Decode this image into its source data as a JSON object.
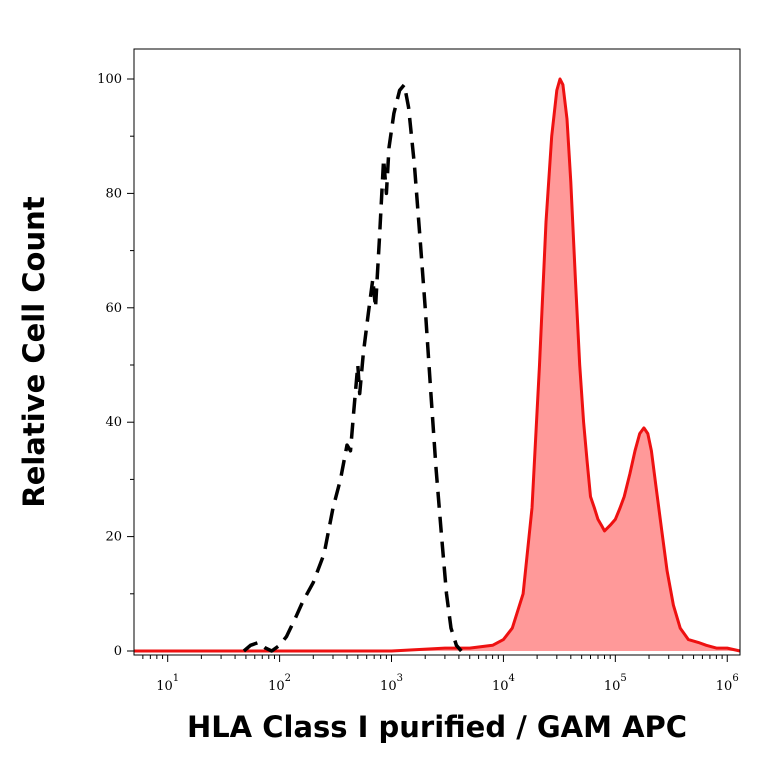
{
  "chart_data": {
    "type": "area",
    "title": "",
    "xlabel": "HLA Class I purified / GAM APC",
    "ylabel": "Relative Cell Count",
    "x_scale": "log",
    "xlim": [
      5,
      1300000
    ],
    "ylim": [
      0,
      100
    ],
    "grid": false,
    "x_ticks": [
      {
        "base": "10",
        "exp": "1",
        "value": 10
      },
      {
        "base": "10",
        "exp": "2",
        "value": 100
      },
      {
        "base": "10",
        "exp": "3",
        "value": 1000
      },
      {
        "base": "10",
        "exp": "4",
        "value": 10000
      },
      {
        "base": "10",
        "exp": "5",
        "value": 100000
      },
      {
        "base": "10",
        "exp": "6",
        "value": 1000000
      }
    ],
    "y_ticks": [
      {
        "label": "0",
        "value": 0
      },
      {
        "label": "20",
        "value": 20
      },
      {
        "label": "40",
        "value": 40
      },
      {
        "label": "60",
        "value": 60
      },
      {
        "label": "80",
        "value": 80
      },
      {
        "label": "100",
        "value": 100
      }
    ],
    "series": [
      {
        "style": "dashed",
        "color": "#000000",
        "fill": "none",
        "points": [
          [
            48,
            0
          ],
          [
            55,
            1
          ],
          [
            65,
            1.5
          ],
          [
            75,
            0.5
          ],
          [
            85,
            0
          ],
          [
            100,
            1
          ],
          [
            115,
            2.5
          ],
          [
            140,
            6
          ],
          [
            160,
            8.5
          ],
          [
            200,
            12
          ],
          [
            250,
            17
          ],
          [
            300,
            25
          ],
          [
            350,
            30
          ],
          [
            400,
            36
          ],
          [
            430,
            35
          ],
          [
            460,
            42
          ],
          [
            500,
            50
          ],
          [
            520,
            45
          ],
          [
            560,
            52
          ],
          [
            620,
            59
          ],
          [
            680,
            65
          ],
          [
            720,
            60
          ],
          [
            780,
            72
          ],
          [
            850,
            86
          ],
          [
            900,
            80
          ],
          [
            950,
            88
          ],
          [
            1050,
            94
          ],
          [
            1180,
            98
          ],
          [
            1300,
            99
          ],
          [
            1420,
            95
          ],
          [
            1600,
            85
          ],
          [
            1800,
            72
          ],
          [
            2000,
            60
          ],
          [
            2250,
            45
          ],
          [
            2500,
            32
          ],
          [
            2800,
            20
          ],
          [
            3100,
            10
          ],
          [
            3400,
            4
          ],
          [
            3800,
            1
          ],
          [
            4200,
            0
          ]
        ]
      },
      {
        "style": "solid",
        "color": "#ee1111",
        "fill": "#ff9999",
        "points": [
          [
            5,
            0
          ],
          [
            20,
            0
          ],
          [
            100,
            0
          ],
          [
            1000,
            0
          ],
          [
            3000,
            0.5
          ],
          [
            5000,
            0.5
          ],
          [
            8000,
            1
          ],
          [
            10000,
            2
          ],
          [
            12000,
            4
          ],
          [
            15000,
            10
          ],
          [
            18000,
            25
          ],
          [
            21000,
            50
          ],
          [
            24000,
            75
          ],
          [
            27000,
            90
          ],
          [
            30000,
            98
          ],
          [
            32000,
            100
          ],
          [
            34000,
            99
          ],
          [
            37000,
            93
          ],
          [
            40000,
            82
          ],
          [
            44000,
            65
          ],
          [
            48000,
            50
          ],
          [
            52000,
            40
          ],
          [
            56000,
            33
          ],
          [
            60000,
            27
          ],
          [
            65000,
            25
          ],
          [
            70000,
            23
          ],
          [
            75000,
            22
          ],
          [
            80000,
            21
          ],
          [
            90000,
            22
          ],
          [
            100000,
            23
          ],
          [
            110000,
            25
          ],
          [
            120000,
            27
          ],
          [
            135000,
            31
          ],
          [
            150000,
            35
          ],
          [
            165000,
            38
          ],
          [
            180000,
            39
          ],
          [
            195000,
            38
          ],
          [
            210000,
            35
          ],
          [
            230000,
            29
          ],
          [
            260000,
            21
          ],
          [
            290000,
            14
          ],
          [
            330000,
            8
          ],
          [
            380000,
            4
          ],
          [
            450000,
            2
          ],
          [
            550000,
            1.5
          ],
          [
            650000,
            1
          ],
          [
            800000,
            0.5
          ],
          [
            1000000,
            0.5
          ],
          [
            1300000,
            0
          ]
        ]
      }
    ]
  }
}
